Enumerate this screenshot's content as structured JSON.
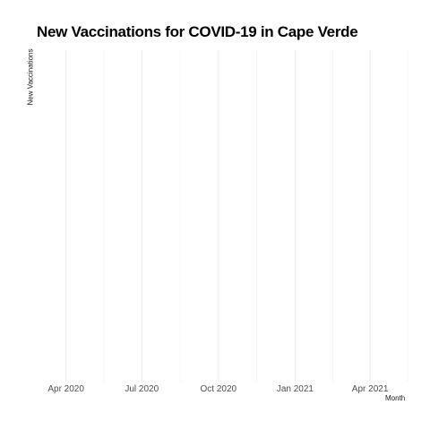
{
  "chart_data": {
    "type": "line",
    "title": "New Vaccinations for COVID-19 in Cape Verde",
    "xlabel": "Month",
    "ylabel": "New Vaccinations",
    "x_ticks": [
      "Apr 2020",
      "Jul 2020",
      "Oct 2020",
      "Jan 2021",
      "Apr 2021"
    ],
    "xlim": [
      "2020-02-13",
      "2021-06-13"
    ],
    "grid": true,
    "series": []
  }
}
